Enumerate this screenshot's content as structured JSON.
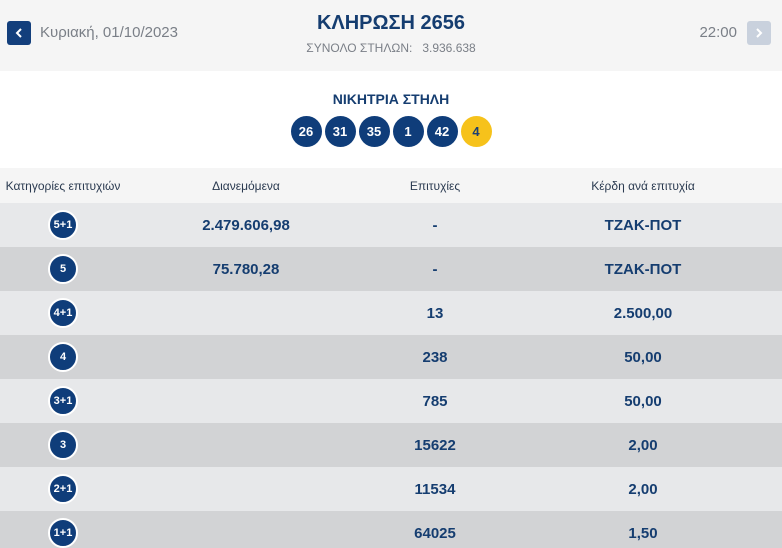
{
  "header": {
    "date": "Κυριακή, 01/10/2023",
    "draw_title": "ΚΛΗΡΩΣΗ 2656",
    "total_columns_label": "ΣΥΝΟΛΟ ΣΤΗΛΩΝ:",
    "total_columns_value": "3.936.638",
    "time": "22:00",
    "prev_icon": "chevron-left-icon",
    "next_icon": "chevron-right-icon"
  },
  "winning": {
    "title": "ΝΙΚΗΤΡΙΑ ΣΤΗΛΗ",
    "numbers": [
      "26",
      "31",
      "35",
      "1",
      "42"
    ],
    "joker": "4"
  },
  "table": {
    "headers": [
      "Κατηγορίες επιτυχιών",
      "Διανεμόμενα",
      "Επιτυχίες",
      "Κέρδη ανά επιτυχία"
    ],
    "rows": [
      {
        "category": "5+1",
        "distributed": "2.479.606,98",
        "winners": "-",
        "prize": "ΤΖΑΚ-ΠΟΤ"
      },
      {
        "category": "5",
        "distributed": "75.780,28",
        "winners": "-",
        "prize": "ΤΖΑΚ-ΠΟΤ"
      },
      {
        "category": "4+1",
        "distributed": "",
        "winners": "13",
        "prize": "2.500,00"
      },
      {
        "category": "4",
        "distributed": "",
        "winners": "238",
        "prize": "50,00"
      },
      {
        "category": "3+1",
        "distributed": "",
        "winners": "785",
        "prize": "50,00"
      },
      {
        "category": "3",
        "distributed": "",
        "winners": "15622",
        "prize": "2,00"
      },
      {
        "category": "2+1",
        "distributed": "",
        "winners": "11534",
        "prize": "2,00"
      },
      {
        "category": "1+1",
        "distributed": "",
        "winners": "64025",
        "prize": "1,50"
      }
    ]
  },
  "colors": {
    "ball": "#0f3d7a",
    "joker": "#f6c21b",
    "text": "#153d70"
  }
}
